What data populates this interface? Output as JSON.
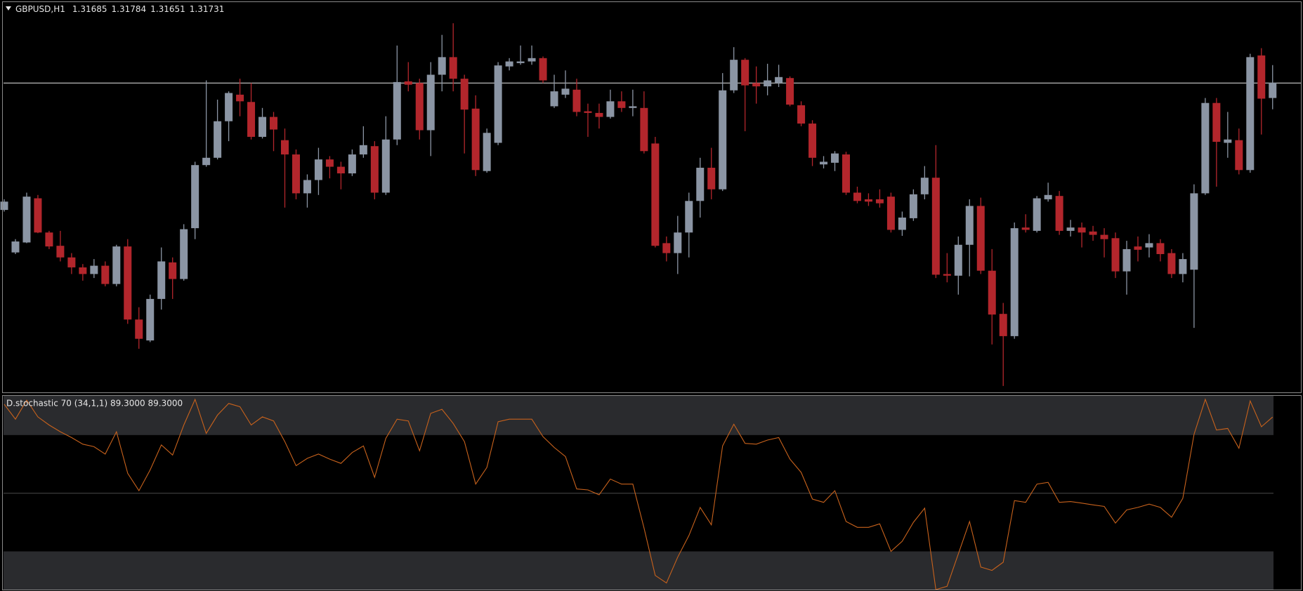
{
  "chart_data": [
    {
      "type": "candlestick",
      "title": "GBPUSD,H1",
      "up_color": "#8b95a4",
      "down_color": "#b3262c",
      "hline": 1.3173,
      "hline_color": "#cfcfcf",
      "ylim": [
        1.308,
        1.3198
      ],
      "open": [
        1.31348,
        1.3122,
        1.3125,
        1.31383,
        1.3128,
        1.3124,
        1.31205,
        1.31175,
        1.31155,
        1.3118,
        1.31125,
        1.31238,
        1.31018,
        1.30955,
        1.3108,
        1.3119,
        1.3114,
        1.31293,
        1.31483,
        1.31505,
        1.31615,
        1.31695,
        1.31673,
        1.31568,
        1.31628,
        1.31558,
        1.31515,
        1.31398,
        1.31438,
        1.315,
        1.31478,
        1.31458,
        1.31515,
        1.3154,
        1.314,
        1.3156,
        1.31735,
        1.3173,
        1.31588,
        1.31755,
        1.31808,
        1.31743,
        1.31653,
        1.31465,
        1.3155,
        1.3178,
        1.3179,
        1.31795,
        1.31805,
        1.3166,
        1.31695,
        1.3171,
        1.31645,
        1.3164,
        1.31628,
        1.31675,
        1.31655,
        1.31655,
        1.31548,
        1.31248,
        1.31218,
        1.3128,
        1.31375,
        1.31475,
        1.3141,
        1.31708,
        1.318,
        1.3173,
        1.3172,
        1.3173,
        1.31745,
        1.31663,
        1.31608,
        1.31485,
        1.3149,
        1.31515,
        1.314,
        1.3138,
        1.3138,
        1.31388,
        1.31288,
        1.31323,
        1.31395,
        1.31445,
        1.31155,
        1.3115,
        1.31243,
        1.3136,
        1.31165,
        1.31035,
        1.30968,
        1.31295,
        1.31285,
        1.3138,
        1.3139,
        1.31285,
        1.31295,
        1.31283,
        1.31273,
        1.31263,
        1.31163,
        1.31238,
        1.31235,
        1.31248,
        1.31218,
        1.31155,
        1.31168,
        1.31398,
        1.3167,
        1.3155,
        1.31558,
        1.31468,
        1.31813,
        1.31685
      ],
      "high": [
        1.3138,
        1.3126,
        1.314,
        1.31393,
        1.31285,
        1.31285,
        1.31218,
        1.31185,
        1.312,
        1.31193,
        1.31243,
        1.3126,
        1.31055,
        1.31093,
        1.31235,
        1.31205,
        1.31305,
        1.31493,
        1.31738,
        1.3168,
        1.31705,
        1.31743,
        1.3173,
        1.31655,
        1.31643,
        1.31593,
        1.3153,
        1.31455,
        1.31535,
        1.3151,
        1.31493,
        1.3153,
        1.316,
        1.31555,
        1.3163,
        1.31843,
        1.31793,
        1.31743,
        1.31793,
        1.31875,
        1.3191,
        1.31755,
        1.31693,
        1.31593,
        1.31793,
        1.31805,
        1.31843,
        1.31843,
        1.3181,
        1.31755,
        1.31768,
        1.31743,
        1.31668,
        1.31668,
        1.3171,
        1.31705,
        1.3171,
        1.31705,
        1.31568,
        1.31268,
        1.3133,
        1.314,
        1.31505,
        1.31535,
        1.3176,
        1.31838,
        1.31805,
        1.3178,
        1.31788,
        1.31785,
        1.3175,
        1.31675,
        1.31618,
        1.3151,
        1.31525,
        1.31523,
        1.31418,
        1.31398,
        1.3141,
        1.314,
        1.31343,
        1.3141,
        1.3148,
        1.31543,
        1.31218,
        1.31268,
        1.3138,
        1.31385,
        1.3123,
        1.31068,
        1.3131,
        1.31335,
        1.3139,
        1.3143,
        1.31405,
        1.31318,
        1.3131,
        1.313,
        1.31293,
        1.3128,
        1.31255,
        1.31268,
        1.31275,
        1.3126,
        1.3123,
        1.31218,
        1.31425,
        1.31685,
        1.31685,
        1.31643,
        1.31593,
        1.31818,
        1.31835,
        1.31784
      ],
      "low": [
        1.31343,
        1.31215,
        1.31248,
        1.31278,
        1.3123,
        1.31193,
        1.31155,
        1.31135,
        1.31143,
        1.31118,
        1.31118,
        1.31005,
        1.3093,
        1.3095,
        1.31048,
        1.3108,
        1.31135,
        1.3126,
        1.31478,
        1.315,
        1.31555,
        1.3163,
        1.3156,
        1.31563,
        1.31525,
        1.31355,
        1.3138,
        1.31355,
        1.31393,
        1.31443,
        1.3141,
        1.3145,
        1.31505,
        1.3138,
        1.31393,
        1.31543,
        1.31705,
        1.3156,
        1.3151,
        1.31705,
        1.31705,
        1.31518,
        1.3145,
        1.3146,
        1.31543,
        1.31768,
        1.31785,
        1.31785,
        1.3173,
        1.31655,
        1.31685,
        1.3163,
        1.31568,
        1.31593,
        1.31623,
        1.31643,
        1.3163,
        1.31518,
        1.31235,
        1.31193,
        1.31155,
        1.31205,
        1.31325,
        1.3138,
        1.31405,
        1.317,
        1.31585,
        1.31668,
        1.31693,
        1.31718,
        1.3166,
        1.316,
        1.3148,
        1.31473,
        1.31465,
        1.31393,
        1.31368,
        1.3136,
        1.31355,
        1.3128,
        1.3127,
        1.31315,
        1.3138,
        1.31143,
        1.3113,
        1.31093,
        1.31148,
        1.31155,
        1.30943,
        1.30818,
        1.3096,
        1.3128,
        1.3128,
        1.31373,
        1.31273,
        1.31268,
        1.31235,
        1.31255,
        1.31205,
        1.31143,
        1.31093,
        1.31193,
        1.31205,
        1.31193,
        1.31143,
        1.3113,
        1.30993,
        1.31393,
        1.31418,
        1.31505,
        1.31455,
        1.3146,
        1.31575,
        1.31651
      ],
      "close": [
        1.31373,
        1.31253,
        1.31388,
        1.3128,
        1.31238,
        1.31205,
        1.31175,
        1.31155,
        1.3118,
        1.31125,
        1.31238,
        1.31018,
        1.3096,
        1.3108,
        1.31193,
        1.3114,
        1.3129,
        1.31483,
        1.31505,
        1.31615,
        1.317,
        1.31675,
        1.31568,
        1.31628,
        1.3159,
        1.31515,
        1.31398,
        1.31438,
        1.315,
        1.31478,
        1.31458,
        1.31515,
        1.31543,
        1.314,
        1.3156,
        1.31733,
        1.31725,
        1.31588,
        1.31755,
        1.31808,
        1.31743,
        1.3165,
        1.31468,
        1.3158,
        1.31783,
        1.31795,
        1.31795,
        1.31805,
        1.31738,
        1.31705,
        1.31713,
        1.31643,
        1.3164,
        1.31628,
        1.31675,
        1.31655,
        1.3166,
        1.31525,
        1.3124,
        1.31218,
        1.3128,
        1.31375,
        1.31475,
        1.3141,
        1.31708,
        1.318,
        1.31723,
        1.3172,
        1.31738,
        1.31748,
        1.31665,
        1.31608,
        1.31505,
        1.31493,
        1.31518,
        1.314,
        1.31375,
        1.31373,
        1.31368,
        1.31288,
        1.31325,
        1.31395,
        1.31445,
        1.31153,
        1.3115,
        1.31243,
        1.3136,
        1.31165,
        1.31033,
        1.30968,
        1.31293,
        1.31288,
        1.31383,
        1.31393,
        1.31285,
        1.31295,
        1.3128,
        1.31273,
        1.3126,
        1.31163,
        1.3123,
        1.31228,
        1.31248,
        1.31215,
        1.31155,
        1.312,
        1.31398,
        1.3167,
        1.31553,
        1.3156,
        1.31468,
        1.31808,
        1.31683,
        1.31731
      ]
    },
    {
      "type": "line",
      "title": "D.stochastic 70 (34,1,1) 89.3000 89.3000",
      "color": "#c8621c",
      "band_color": "#2a2b2e",
      "level_color": "#4a4a4a",
      "ylim": [
        0,
        100
      ],
      "levels": [
        20,
        50,
        80
      ],
      "values": [
        95.9,
        88.2,
        98,
        89.4,
        85.2,
        81.7,
        78.7,
        75.3,
        74,
        70.2,
        81.7,
        60.3,
        51.3,
        62,
        74.9,
        69.7,
        85.2,
        98.4,
        80.9,
        90.3,
        96.3,
        94.6,
        85.2,
        89.4,
        87.3,
        76.6,
        64.2,
        68,
        70.2,
        67.6,
        65.4,
        71,
        74.4,
        58.2,
        78.3,
        88.2,
        87.3,
        71.9,
        91.2,
        93.3,
        86,
        76.6,
        54.7,
        63.3,
        86.9,
        88.2,
        88.2,
        88.2,
        79.2,
        73.6,
        68.9,
        52.2,
        51.7,
        49.2,
        57.3,
        54.7,
        54.7,
        32,
        7.6,
        3.7,
        17,
        28.2,
        42.7,
        33.7,
        74.4,
        85.6,
        75.7,
        75.3,
        77.4,
        78.7,
        67.6,
        60.7,
        47,
        45.3,
        51.3,
        35.4,
        32.4,
        32.4,
        34.2,
        20,
        25.2,
        35,
        42.3,
        0.3,
        2,
        18.7,
        35.4,
        11.9,
        10.2,
        14.4,
        46.2,
        45.3,
        54.7,
        55.6,
        45.3,
        45.7,
        44.9,
        44,
        43.2,
        34.6,
        41.4,
        42.7,
        44.4,
        42.7,
        37.6,
        47.4,
        80.4,
        98.4,
        82.6,
        83.4,
        73.2,
        97.6,
        84.3,
        89.3
      ]
    }
  ]
}
